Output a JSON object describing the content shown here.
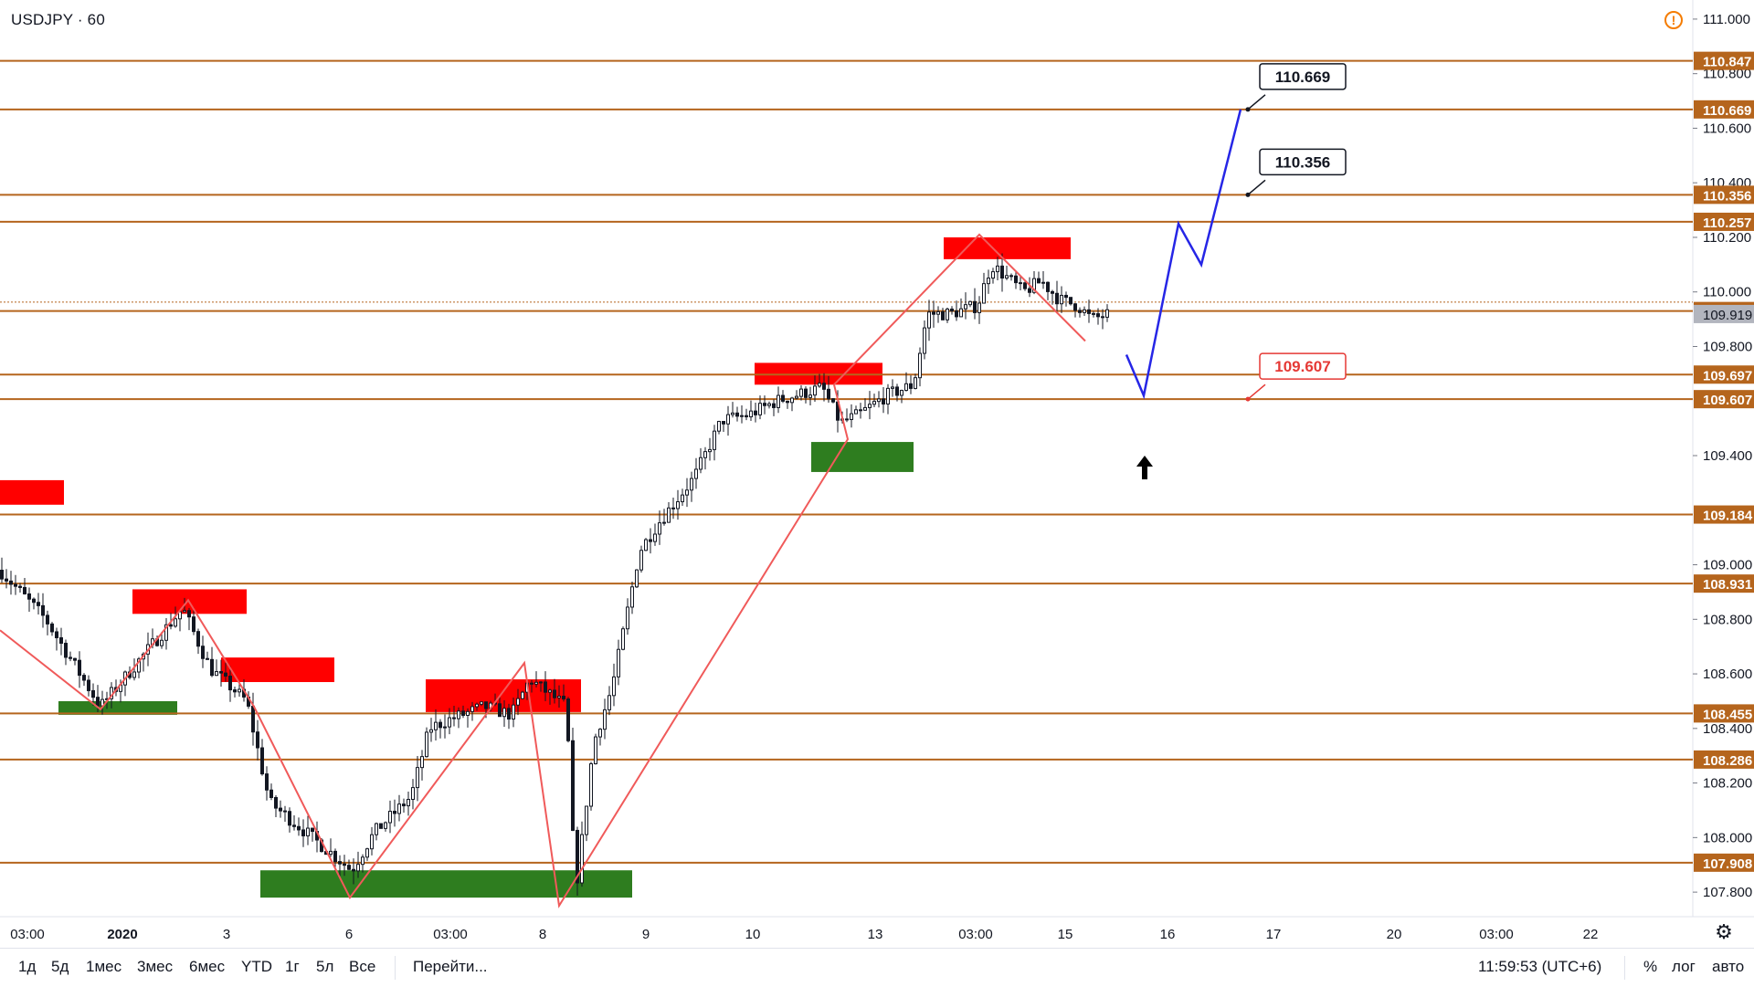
{
  "header": {
    "symbol": "USDJPY · 60"
  },
  "colors": {
    "level_line": "#b5651d",
    "price_tag": "#b5651d",
    "current_tag": "#b2b5be",
    "supply_zone": "#ff0000",
    "demand_zone": "#2e7d1f",
    "zigzag": "#f05a5a",
    "projection": "#2626e6",
    "candle": "#131722"
  },
  "chart_data": {
    "type": "candlestick",
    "y_axis": {
      "ylim": [
        107.71,
        111.07
      ],
      "ticks": [
        "111.000",
        "110.800",
        "110.600",
        "110.400",
        "110.200",
        "110.000",
        "109.800",
        "109.400",
        "109.000",
        "108.800",
        "108.600",
        "108.400",
        "108.200",
        "108.000",
        "107.800"
      ]
    },
    "x_axis": {
      "ticks": [
        "03:00",
        "2020",
        "3",
        "6",
        "03:00",
        "8",
        "9",
        "10",
        "13",
        "03:00",
        "15",
        "16",
        "17",
        "20",
        "03:00",
        "22"
      ]
    },
    "horizontal_levels": [
      110.847,
      110.669,
      110.356,
      110.257,
      109.93,
      109.697,
      109.607,
      109.184,
      108.931,
      108.455,
      108.286,
      107.908
    ],
    "current_price": 109.919,
    "callouts": [
      {
        "label": "110.669",
        "value": 110.669,
        "style": "black"
      },
      {
        "label": "110.356",
        "value": 110.356,
        "style": "black"
      },
      {
        "label": "109.607",
        "value": 109.607,
        "style": "red"
      }
    ],
    "supply_zones": [
      {
        "from_price": 109.22,
        "to_price": 109.31
      },
      {
        "from_price": 108.82,
        "to_price": 108.91
      },
      {
        "from_price": 108.57,
        "to_price": 108.66
      },
      {
        "from_price": 108.46,
        "to_price": 108.58
      },
      {
        "from_price": 109.66,
        "to_price": 109.74
      },
      {
        "from_price": 110.12,
        "to_price": 110.2
      }
    ],
    "demand_zones": [
      {
        "from_price": 108.45,
        "to_price": 108.5
      },
      {
        "from_price": 107.78,
        "to_price": 107.88
      },
      {
        "from_price": 109.34,
        "to_price": 109.45
      }
    ],
    "zigzag": [
      108.76,
      108.47,
      108.87,
      108.48,
      107.78,
      108.64,
      107.75,
      109.46,
      109.66,
      110.21,
      109.82
    ],
    "projection": [
      109.77,
      109.62,
      110.25,
      110.1,
      110.669
    ],
    "candles_summary": "hourly USDJPY, rising from ~108.8 to ~109.92"
  },
  "toolbar": {
    "timeframes": [
      "1д",
      "5д",
      "1мес",
      "3мес",
      "6мес",
      "YTD",
      "1г",
      "5л",
      "Все"
    ],
    "goto": "Перейти...",
    "clock": "11:59:53 (UTC+6)",
    "percent": "%",
    "log": "лог",
    "auto": "авто"
  }
}
